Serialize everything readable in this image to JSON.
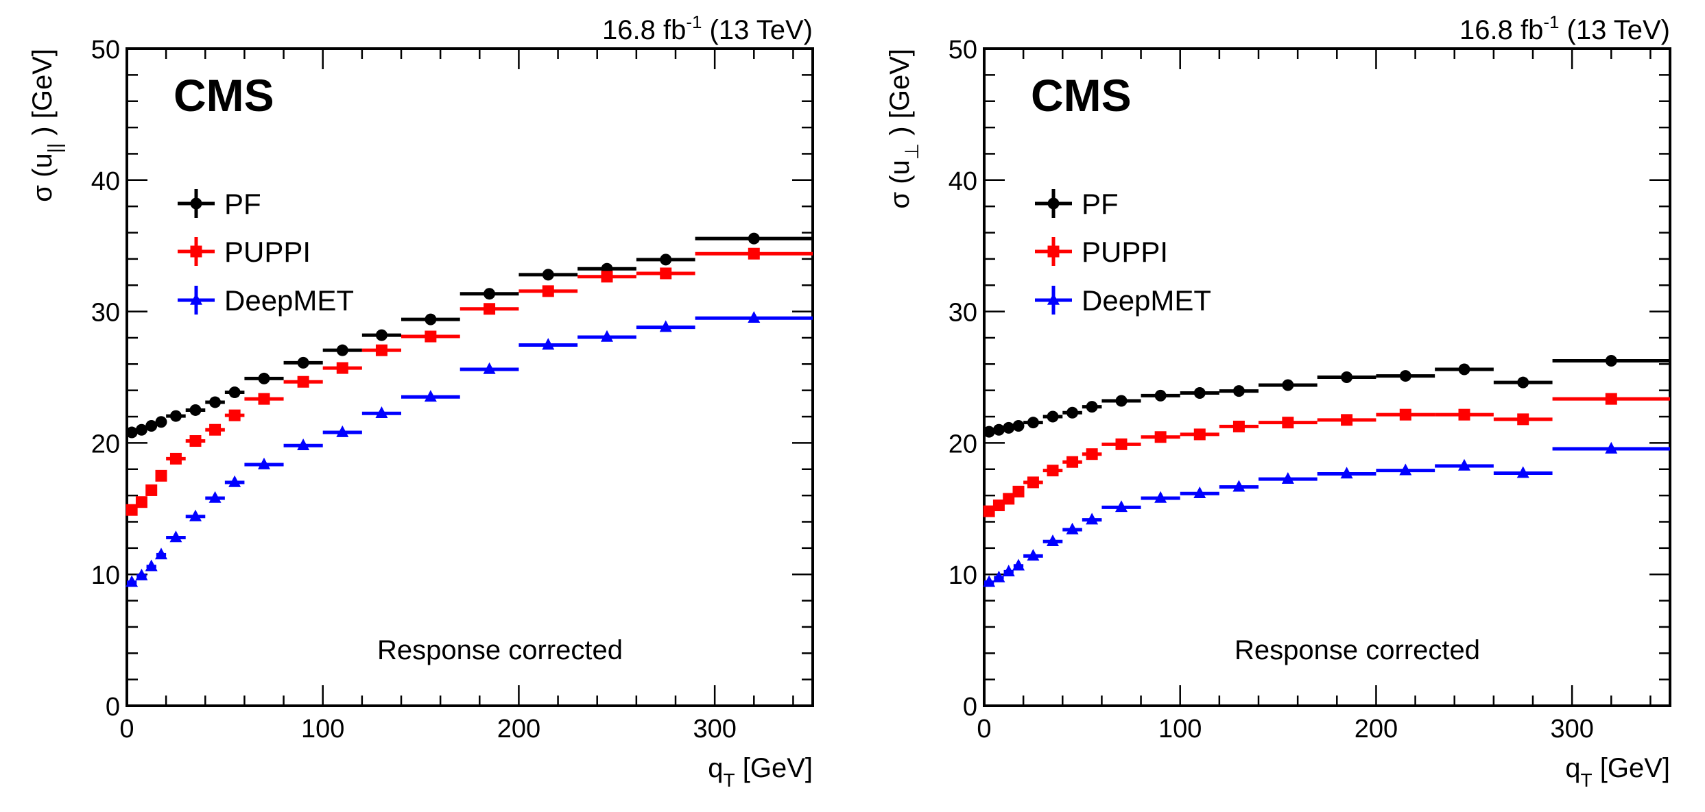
{
  "chart_data": [
    {
      "type": "scatter",
      "panel": "left",
      "title": "",
      "experiment_label": "CMS",
      "lumi_label": {
        "value": "16.8 fb",
        "sup": "-1",
        "suffix": " (13 TeV)"
      },
      "annotation": "Response corrected",
      "xlabel": {
        "main": "q",
        "sub": "T",
        "unit": " [GeV]"
      },
      "ylabel": {
        "prefix": "σ (u",
        "sub": "||",
        "suffix": " ) [GeV]"
      },
      "xlim": [
        0,
        350
      ],
      "ylim": [
        0,
        50
      ],
      "x_major_ticks": [
        0,
        100,
        200,
        300
      ],
      "x_minor_step": 20,
      "y_major_ticks": [
        0,
        10,
        20,
        30,
        40,
        50
      ],
      "y_minor_step": 2,
      "grid": false,
      "legend_position": "top-left",
      "bin_edges": [
        0,
        5,
        10,
        15,
        20,
        30,
        40,
        50,
        60,
        80,
        100,
        120,
        140,
        170,
        200,
        230,
        260,
        290,
        350
      ],
      "series": [
        {
          "name": "PF",
          "color": "#000000",
          "marker": "circle",
          "values": [
            20.8,
            21.0,
            21.3,
            21.6,
            22.05,
            22.5,
            23.1,
            23.85,
            24.9,
            26.1,
            27.05,
            28.2,
            29.4,
            31.35,
            32.8,
            33.25,
            33.95,
            35.55
          ]
        },
        {
          "name": "PUPPI",
          "color": "#ff0000",
          "marker": "square",
          "values": [
            14.9,
            15.5,
            16.4,
            17.5,
            18.8,
            20.15,
            21.0,
            22.1,
            23.35,
            24.65,
            25.7,
            27.05,
            28.1,
            30.2,
            31.55,
            32.65,
            32.9,
            34.4
          ]
        },
        {
          "name": "DeepMET",
          "color": "#0000ff",
          "marker": "triangle",
          "values": [
            9.4,
            9.9,
            10.6,
            11.5,
            12.8,
            14.4,
            15.8,
            17.0,
            18.35,
            19.8,
            20.8,
            22.25,
            23.5,
            25.6,
            27.45,
            28.05,
            28.8,
            29.5
          ]
        }
      ]
    },
    {
      "type": "scatter",
      "panel": "right",
      "title": "",
      "experiment_label": "CMS",
      "lumi_label": {
        "value": "16.8 fb",
        "sup": "-1",
        "suffix": " (13 TeV)"
      },
      "annotation": "Response corrected",
      "xlabel": {
        "main": "q",
        "sub": "T",
        "unit": " [GeV]"
      },
      "ylabel": {
        "prefix": "σ (u",
        "sub": "⊥",
        "suffix": " ) [GeV]"
      },
      "xlim": [
        0,
        350
      ],
      "ylim": [
        0,
        50
      ],
      "x_major_ticks": [
        0,
        100,
        200,
        300
      ],
      "x_minor_step": 20,
      "y_major_ticks": [
        0,
        10,
        20,
        30,
        40,
        50
      ],
      "y_minor_step": 2,
      "grid": false,
      "legend_position": "top-left",
      "bin_edges": [
        0,
        5,
        10,
        15,
        20,
        30,
        40,
        50,
        60,
        80,
        100,
        120,
        140,
        170,
        200,
        230,
        260,
        290,
        350
      ],
      "series": [
        {
          "name": "PF",
          "color": "#000000",
          "marker": "circle",
          "values": [
            20.85,
            21.0,
            21.15,
            21.3,
            21.55,
            22.0,
            22.3,
            22.75,
            23.2,
            23.6,
            23.8,
            23.95,
            24.4,
            25.0,
            25.1,
            25.6,
            24.6,
            26.25
          ]
        },
        {
          "name": "PUPPI",
          "color": "#ff0000",
          "marker": "square",
          "values": [
            14.8,
            15.25,
            15.75,
            16.3,
            17.0,
            17.9,
            18.55,
            19.15,
            19.9,
            20.45,
            20.65,
            21.25,
            21.55,
            21.75,
            22.15,
            22.15,
            21.8,
            23.35
          ]
        },
        {
          "name": "DeepMET",
          "color": "#0000ff",
          "marker": "triangle",
          "values": [
            9.4,
            9.75,
            10.2,
            10.65,
            11.4,
            12.5,
            13.4,
            14.15,
            15.1,
            15.8,
            16.15,
            16.65,
            17.25,
            17.65,
            17.9,
            18.25,
            17.7,
            19.55
          ]
        }
      ]
    }
  ]
}
